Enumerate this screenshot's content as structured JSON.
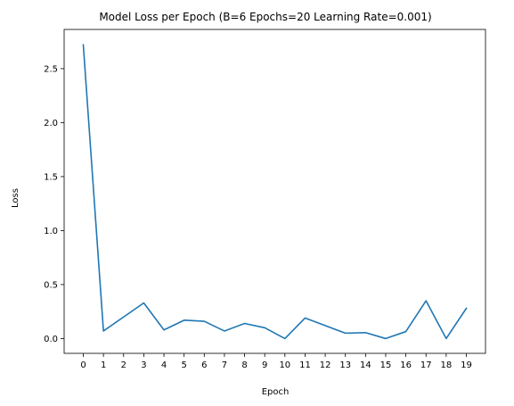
{
  "chart_data": {
    "type": "line",
    "title": "Model Loss per Epoch (B=6 Epochs=20 Learning Rate=0.001)",
    "xlabel": "Epoch",
    "ylabel": "Loss",
    "x": [
      0,
      1,
      2,
      3,
      4,
      5,
      6,
      7,
      8,
      9,
      10,
      11,
      12,
      13,
      14,
      15,
      16,
      17,
      18,
      19
    ],
    "xticks": [
      "0",
      "1",
      "2",
      "3",
      "4",
      "5",
      "6",
      "7",
      "8",
      "9",
      "10",
      "11",
      "12",
      "13",
      "14",
      "15",
      "16",
      "17",
      "18",
      "19"
    ],
    "yticks": [
      "0.0",
      "0.5",
      "1.0",
      "1.5",
      "2.0",
      "2.5"
    ],
    "ytick_values": [
      0.0,
      0.5,
      1.0,
      1.5,
      2.0,
      2.5
    ],
    "xlim": [
      -0.95,
      19.95
    ],
    "ylim": [
      -0.137,
      2.863
    ],
    "grid": false,
    "series": [
      {
        "color": "#1f77b4",
        "values": [
          2.72,
          0.07,
          0.2,
          0.33,
          0.08,
          0.17,
          0.16,
          0.07,
          0.14,
          0.1,
          0.0,
          0.19,
          0.12,
          0.05,
          0.055,
          0.0,
          0.065,
          0.35,
          0.0,
          0.28
        ]
      }
    ]
  }
}
